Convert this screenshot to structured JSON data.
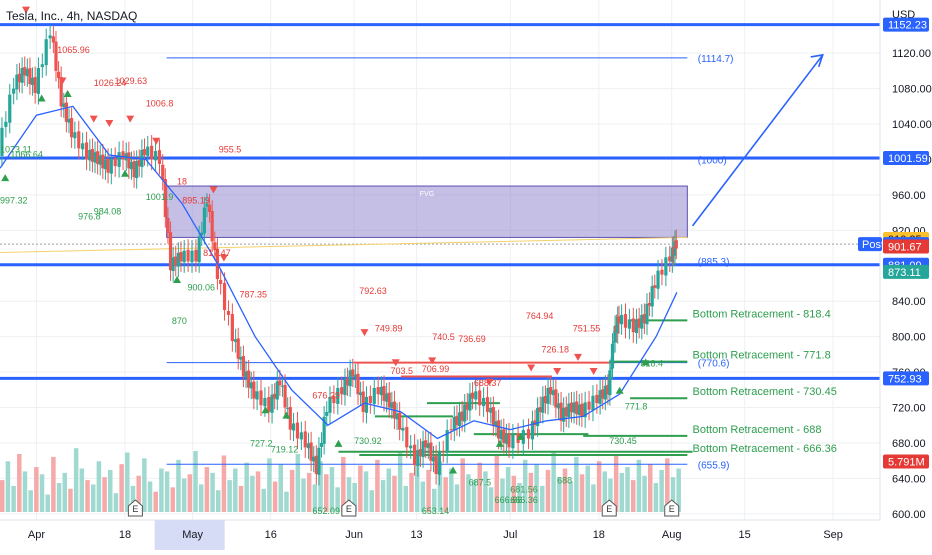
{
  "header": {
    "title": "Tesla, Inc., 4h, NASDAQ",
    "currency": "USD"
  },
  "chart_data": {
    "type": "candlestick",
    "price_range": [
      593,
      1180
    ],
    "time_range": [
      "2022-03-25",
      "2022-09-10"
    ],
    "price_ticks": [
      600,
      640,
      680,
      720,
      760,
      800,
      840,
      880,
      920,
      960,
      1000,
      1040,
      1080,
      1120
    ],
    "price_tick_labels": [
      "600.00",
      "640.00",
      "680.00",
      "720.00",
      "760.00",
      "800.00",
      "840.00",
      "880.00",
      "920.00",
      "960.00",
      "1000.00",
      "1040.00",
      "1080.00",
      "1120.00"
    ],
    "time_ticks": [
      {
        "date": "2022-04-01",
        "label": "Apr"
      },
      {
        "date": "2022-04-18",
        "label": "18"
      },
      {
        "date": "2022-05-01",
        "label": "May"
      },
      {
        "date": "2022-05-16",
        "label": "16"
      },
      {
        "date": "2022-06-01",
        "label": "Jun"
      },
      {
        "date": "2022-06-13",
        "label": "13"
      },
      {
        "date": "2022-07-01",
        "label": "Jul"
      },
      {
        "date": "2022-07-18",
        "label": "18"
      },
      {
        "date": "2022-08-01",
        "label": "Aug"
      },
      {
        "date": "2022-08-15",
        "label": "15"
      },
      {
        "date": "2022-09-01",
        "label": "Sep"
      }
    ],
    "highlighted_time_label": "May",
    "close_path": [
      {
        "d": "2022-03-25",
        "p": 1010
      },
      {
        "d": "2022-03-28",
        "p": 1085
      },
      {
        "d": "2022-03-30",
        "p": 1100
      },
      {
        "d": "2022-04-01",
        "p": 1080
      },
      {
        "d": "2022-04-04",
        "p": 1145
      },
      {
        "d": "2022-04-06",
        "p": 1065
      },
      {
        "d": "2022-04-08",
        "p": 1030
      },
      {
        "d": "2022-04-11",
        "p": 1005
      },
      {
        "d": "2022-04-13",
        "p": 1000
      },
      {
        "d": "2022-04-15",
        "p": 990
      },
      {
        "d": "2022-04-18",
        "p": 1005
      },
      {
        "d": "2022-04-20",
        "p": 985
      },
      {
        "d": "2022-04-22",
        "p": 1010
      },
      {
        "d": "2022-04-25",
        "p": 1000
      },
      {
        "d": "2022-04-27",
        "p": 880
      },
      {
        "d": "2022-04-29",
        "p": 890
      },
      {
        "d": "2022-05-02",
        "p": 890
      },
      {
        "d": "2022-05-04",
        "p": 955
      },
      {
        "d": "2022-05-06",
        "p": 870
      },
      {
        "d": "2022-05-09",
        "p": 800
      },
      {
        "d": "2022-05-11",
        "p": 760
      },
      {
        "d": "2022-05-13",
        "p": 735
      },
      {
        "d": "2022-05-16",
        "p": 720
      },
      {
        "d": "2022-05-18",
        "p": 750
      },
      {
        "d": "2022-05-20",
        "p": 700
      },
      {
        "d": "2022-05-23",
        "p": 680
      },
      {
        "d": "2022-05-25",
        "p": 650
      },
      {
        "d": "2022-05-27",
        "p": 720
      },
      {
        "d": "2022-05-30",
        "p": 740
      },
      {
        "d": "2022-06-01",
        "p": 760
      },
      {
        "d": "2022-06-03",
        "p": 720
      },
      {
        "d": "2022-06-06",
        "p": 740
      },
      {
        "d": "2022-06-08",
        "p": 725
      },
      {
        "d": "2022-06-10",
        "p": 700
      },
      {
        "d": "2022-06-13",
        "p": 660
      },
      {
        "d": "2022-06-15",
        "p": 680
      },
      {
        "d": "2022-06-17",
        "p": 650
      },
      {
        "d": "2022-06-20",
        "p": 700
      },
      {
        "d": "2022-06-22",
        "p": 710
      },
      {
        "d": "2022-06-24",
        "p": 735
      },
      {
        "d": "2022-06-27",
        "p": 720
      },
      {
        "d": "2022-06-29",
        "p": 690
      },
      {
        "d": "2022-07-01",
        "p": 680
      },
      {
        "d": "2022-07-05",
        "p": 690
      },
      {
        "d": "2022-07-07",
        "p": 720
      },
      {
        "d": "2022-07-09",
        "p": 740
      },
      {
        "d": "2022-07-11",
        "p": 710
      },
      {
        "d": "2022-07-13",
        "p": 720
      },
      {
        "d": "2022-07-15",
        "p": 715
      },
      {
        "d": "2022-07-18",
        "p": 730
      },
      {
        "d": "2022-07-20",
        "p": 740
      },
      {
        "d": "2022-07-21",
        "p": 800
      },
      {
        "d": "2022-07-22",
        "p": 820
      },
      {
        "d": "2022-07-25",
        "p": 810
      },
      {
        "d": "2022-07-27",
        "p": 820
      },
      {
        "d": "2022-07-29",
        "p": 860
      },
      {
        "d": "2022-08-01",
        "p": 890
      },
      {
        "d": "2022-08-02",
        "p": 904.48
      }
    ],
    "ma_path": [
      {
        "d": "2022-03-25",
        "p": 990
      },
      {
        "d": "2022-04-01",
        "p": 1050
      },
      {
        "d": "2022-04-08",
        "p": 1060
      },
      {
        "d": "2022-04-15",
        "p": 1005
      },
      {
        "d": "2022-04-22",
        "p": 1000
      },
      {
        "d": "2022-04-29",
        "p": 950
      },
      {
        "d": "2022-05-06",
        "p": 880
      },
      {
        "d": "2022-05-13",
        "p": 800
      },
      {
        "d": "2022-05-20",
        "p": 740
      },
      {
        "d": "2022-05-27",
        "p": 700
      },
      {
        "d": "2022-06-03",
        "p": 725
      },
      {
        "d": "2022-06-10",
        "p": 715
      },
      {
        "d": "2022-06-17",
        "p": 685
      },
      {
        "d": "2022-06-24",
        "p": 705
      },
      {
        "d": "2022-07-01",
        "p": 695
      },
      {
        "d": "2022-07-08",
        "p": 705
      },
      {
        "d": "2022-07-15",
        "p": 710
      },
      {
        "d": "2022-07-22",
        "p": 735
      },
      {
        "d": "2022-07-29",
        "p": 800
      },
      {
        "d": "2022-08-02",
        "p": 850
      }
    ],
    "price_tags": [
      {
        "value": 1152.23,
        "label": "1152.23",
        "color": "#2962ff"
      },
      {
        "value": 1001.59,
        "label": "1001.59",
        "color": "#2962ff"
      },
      {
        "value": 910.25,
        "label": "910.25",
        "color": "#fbc02d",
        "text_color": "#131722"
      },
      {
        "value": 904.48,
        "label": "904.48",
        "color": "#2962ff",
        "prefix": "Post"
      },
      {
        "value": 901.67,
        "label": "901.67",
        "color": "#e53935"
      },
      {
        "value": 881.09,
        "label": "881.09",
        "color": "#2962ff"
      },
      {
        "value": 873.11,
        "label": "873.11",
        "color": "#26a69a"
      },
      {
        "value": 752.93,
        "label": "752.93",
        "color": "#2962ff"
      },
      {
        "value": 659,
        "label": "5.791M",
        "color": "#e53935"
      }
    ],
    "horizontal_levels": [
      {
        "value": 1152.23,
        "color": "#2962ff",
        "width": 3,
        "from": "2022-03-25"
      },
      {
        "value": 1001.59,
        "color": "#2962ff",
        "width": 3,
        "from": "2022-03-25"
      },
      {
        "value": 881.09,
        "color": "#2962ff",
        "width": 3,
        "from": "2022-03-25"
      },
      {
        "value": 752.93,
        "color": "#2962ff",
        "width": 3,
        "from": "2022-03-25"
      },
      {
        "value": 1114.7,
        "color": "#2962ff",
        "width": 1,
        "from": "2022-04-26",
        "to": "2022-08-04"
      },
      {
        "value": 770.6,
        "color": "#2962ff",
        "width": 1,
        "from": "2022-04-26",
        "to": "2022-08-04"
      },
      {
        "value": 655.9,
        "color": "#2962ff",
        "width": 1,
        "from": "2022-04-26",
        "to": "2022-08-04"
      }
    ],
    "fvg_zone": {
      "label": "FVG",
      "from": "2022-04-26",
      "to": "2022-08-04",
      "top": 970,
      "bottom": 912
    },
    "trend_arrow": {
      "from": {
        "d": "2022-08-05",
        "p": 925
      },
      "to": {
        "d": "2022-08-30",
        "p": 1118
      }
    },
    "level_labels": [
      {
        "text": "(1114.7)",
        "d": "2022-08-06",
        "p": 1114.7
      },
      {
        "text": "(1000)",
        "d": "2022-08-06",
        "p": 1000
      },
      {
        "text": "(885.3)",
        "d": "2022-08-06",
        "p": 885.3
      },
      {
        "text": "(770.6)",
        "d": "2022-08-06",
        "p": 770.6
      },
      {
        "text": "(655.9)",
        "d": "2022-08-06",
        "p": 655.9
      }
    ],
    "retracements": [
      {
        "text": "Bottom Retracement - 818.4",
        "value": 818.4,
        "from": "2022-07-24"
      },
      {
        "text": "Bottom Retracement - 771.8",
        "value": 771.8,
        "from": "2022-07-20"
      },
      {
        "text": "Bottom Retracement - 730.45",
        "value": 730.45,
        "from": "2022-07-24"
      },
      {
        "text": "Bottom Retracement - 688",
        "value": 688,
        "from": "2022-07-15"
      },
      {
        "text": "Bottom Retracement - 666.36",
        "value": 666.36,
        "from": "2022-06-02"
      }
    ],
    "resistance_segments": [
      {
        "value": 770.6,
        "from": "2022-06-01",
        "to": "2022-07-21"
      },
      {
        "value": 755,
        "from": "2022-06-10",
        "to": "2022-07-09"
      },
      {
        "value": 725,
        "from": "2022-06-15",
        "to": "2022-06-29"
      },
      {
        "value": 710,
        "from": "2022-06-05",
        "to": "2022-06-20"
      },
      {
        "value": 670,
        "from": "2022-05-29",
        "to": "2022-08-05"
      },
      {
        "value": 690,
        "from": "2022-06-24",
        "to": "2022-07-16"
      }
    ],
    "annotations": [
      {
        "text": "1065.96",
        "d": "2022-04-05",
        "p": 1120,
        "color": "red"
      },
      {
        "text": "1026.24",
        "d": "2022-04-12",
        "p": 1083,
        "color": "red"
      },
      {
        "text": "1029.63",
        "d": "2022-04-16",
        "p": 1085,
        "color": "red"
      },
      {
        "text": "1006.8",
        "d": "2022-04-22",
        "p": 1060,
        "color": "red"
      },
      {
        "text": "955.5",
        "d": "2022-05-06",
        "p": 1008,
        "color": "red"
      },
      {
        "text": "18",
        "d": "2022-04-28",
        "p": 972,
        "color": "red"
      },
      {
        "text": "895.19",
        "d": "2022-04-29",
        "p": 950,
        "color": "red"
      },
      {
        "text": "817.47",
        "d": "2022-05-03",
        "p": 891,
        "color": "red"
      },
      {
        "text": "787.35",
        "d": "2022-05-10",
        "p": 844,
        "color": "red"
      },
      {
        "text": "792.63",
        "d": "2022-06-02",
        "p": 848,
        "color": "red"
      },
      {
        "text": "749.89",
        "d": "2022-06-05",
        "p": 806,
        "color": "red"
      },
      {
        "text": "740.5",
        "d": "2022-06-16",
        "p": 796,
        "color": "red"
      },
      {
        "text": "736.69",
        "d": "2022-06-21",
        "p": 794,
        "color": "red"
      },
      {
        "text": "764.94",
        "d": "2022-07-04",
        "p": 820,
        "color": "red"
      },
      {
        "text": "751.55",
        "d": "2022-07-13",
        "p": 806,
        "color": "red"
      },
      {
        "text": "726.18",
        "d": "2022-07-07",
        "p": 782,
        "color": "red"
      },
      {
        "text": "706.99",
        "d": "2022-06-14",
        "p": 760,
        "color": "red"
      },
      {
        "text": "703.5",
        "d": "2022-06-08",
        "p": 758,
        "color": "red"
      },
      {
        "text": "688.37",
        "d": "2022-06-24",
        "p": 744,
        "color": "red"
      },
      {
        "text": "676.29",
        "d": "2022-05-24",
        "p": 730,
        "color": "red"
      },
      {
        "text": "1066.64",
        "d": "2022-03-27",
        "p": 1002,
        "color": "green"
      },
      {
        "text": "1073.11",
        "d": "2022-03-25",
        "p": 1008,
        "color": "green"
      },
      {
        "text": "997.32",
        "d": "2022-03-25",
        "p": 950,
        "color": "green"
      },
      {
        "text": "984.08",
        "d": "2022-04-12",
        "p": 938,
        "color": "green"
      },
      {
        "text": "976.8",
        "d": "2022-04-09",
        "p": 932,
        "color": "green"
      },
      {
        "text": "1001.9",
        "d": "2022-04-22",
        "p": 954,
        "color": "green"
      },
      {
        "text": "900.06",
        "d": "2022-04-30",
        "p": 852,
        "color": "green"
      },
      {
        "text": "870",
        "d": "2022-04-27",
        "p": 814,
        "color": "green"
      },
      {
        "text": "727.2",
        "d": "2022-05-12",
        "p": 676,
        "color": "green"
      },
      {
        "text": "719.12",
        "d": "2022-05-16",
        "p": 669,
        "color": "green"
      },
      {
        "text": "730.92",
        "d": "2022-06-01",
        "p": 679,
        "color": "green"
      },
      {
        "text": "652.09",
        "d": "2022-05-24",
        "p": 600,
        "color": "green"
      },
      {
        "text": "653.14",
        "d": "2022-06-14",
        "p": 600,
        "color": "green"
      },
      {
        "text": "687.5",
        "d": "2022-06-23",
        "p": 632,
        "color": "green"
      },
      {
        "text": "666.66",
        "d": "2022-06-28",
        "p": 612,
        "color": "green"
      },
      {
        "text": "666.36",
        "d": "2022-07-01",
        "p": 612,
        "color": "green"
      },
      {
        "text": "681.56",
        "d": "2022-07-01",
        "p": 624,
        "color": "green"
      },
      {
        "text": "688",
        "d": "2022-07-10",
        "p": 634,
        "color": "green"
      },
      {
        "text": "730.45",
        "d": "2022-07-20",
        "p": 679,
        "color": "green"
      },
      {
        "text": "771.8",
        "d": "2022-07-23",
        "p": 718,
        "color": "green"
      },
      {
        "text": "818.4",
        "d": "2022-07-26",
        "p": 766,
        "color": "green"
      }
    ],
    "down_markers": [
      {
        "d": "2022-03-30",
        "p": 1168
      },
      {
        "d": "2022-04-06",
        "p": 1088
      },
      {
        "d": "2022-04-12",
        "p": 1045
      },
      {
        "d": "2022-04-15",
        "p": 1040
      },
      {
        "d": "2022-04-19",
        "p": 1045
      },
      {
        "d": "2022-04-24",
        "p": 1020
      },
      {
        "d": "2022-05-05",
        "p": 965
      },
      {
        "d": "2022-05-07",
        "p": 888
      },
      {
        "d": "2022-06-03",
        "p": 804
      },
      {
        "d": "2022-06-09",
        "p": 770
      },
      {
        "d": "2022-06-16",
        "p": 772
      },
      {
        "d": "2022-07-05",
        "p": 764
      },
      {
        "d": "2022-07-10",
        "p": 760
      },
      {
        "d": "2022-07-14",
        "p": 776
      },
      {
        "d": "2022-07-17",
        "p": 760
      },
      {
        "d": "2022-06-27",
        "p": 748
      }
    ],
    "up_markers": [
      {
        "d": "2022-03-26",
        "p": 980
      },
      {
        "d": "2022-04-02",
        "p": 1070
      },
      {
        "d": "2022-04-07",
        "p": 1075
      },
      {
        "d": "2022-04-18",
        "p": 985
      },
      {
        "d": "2022-04-28",
        "p": 865
      },
      {
        "d": "2022-05-15",
        "p": 718
      },
      {
        "d": "2022-05-19",
        "p": 712
      },
      {
        "d": "2022-05-29",
        "p": 680
      },
      {
        "d": "2022-06-20",
        "p": 650
      },
      {
        "d": "2022-06-29",
        "p": 680
      },
      {
        "d": "2022-07-03",
        "p": 688
      },
      {
        "d": "2022-07-22",
        "p": 740
      },
      {
        "d": "2022-07-27",
        "p": 772
      }
    ],
    "volume": [
      22,
      35,
      18,
      40,
      28,
      15,
      31,
      26,
      12,
      38,
      20,
      27,
      16,
      44,
      30,
      22,
      19,
      35,
      24,
      29,
      13,
      33,
      41,
      18,
      25,
      37,
      21,
      14,
      30,
      28,
      17,
      36,
      23,
      26,
      42,
      19,
      31,
      27,
      15,
      39,
      22,
      30,
      18,
      34,
      25,
      28,
      16,
      37,
      21,
      33,
      14,
      29,
      40,
      23,
      27,
      19,
      35,
      26,
      31,
      17,
      38,
      24,
      20,
      32,
      28,
      15,
      36,
      22,
      30,
      25,
      41,
      18,
      27,
      33,
      21,
      29,
      16,
      35,
      24,
      30,
      19,
      37,
      26,
      22,
      34,
      28,
      17,
      39,
      23,
      31,
      25,
      20,
      36,
      27,
      33,
      18,
      29,
      42,
      24,
      30,
      21,
      38,
      26,
      32,
      19,
      35,
      28,
      23,
      40,
      27,
      31,
      22,
      36,
      25,
      33,
      20,
      29,
      37,
      24,
      30
    ],
    "earnings_markers": [
      "2022-04-20",
      "2022-05-31",
      "2022-07-20",
      "2022-08-01"
    ]
  }
}
